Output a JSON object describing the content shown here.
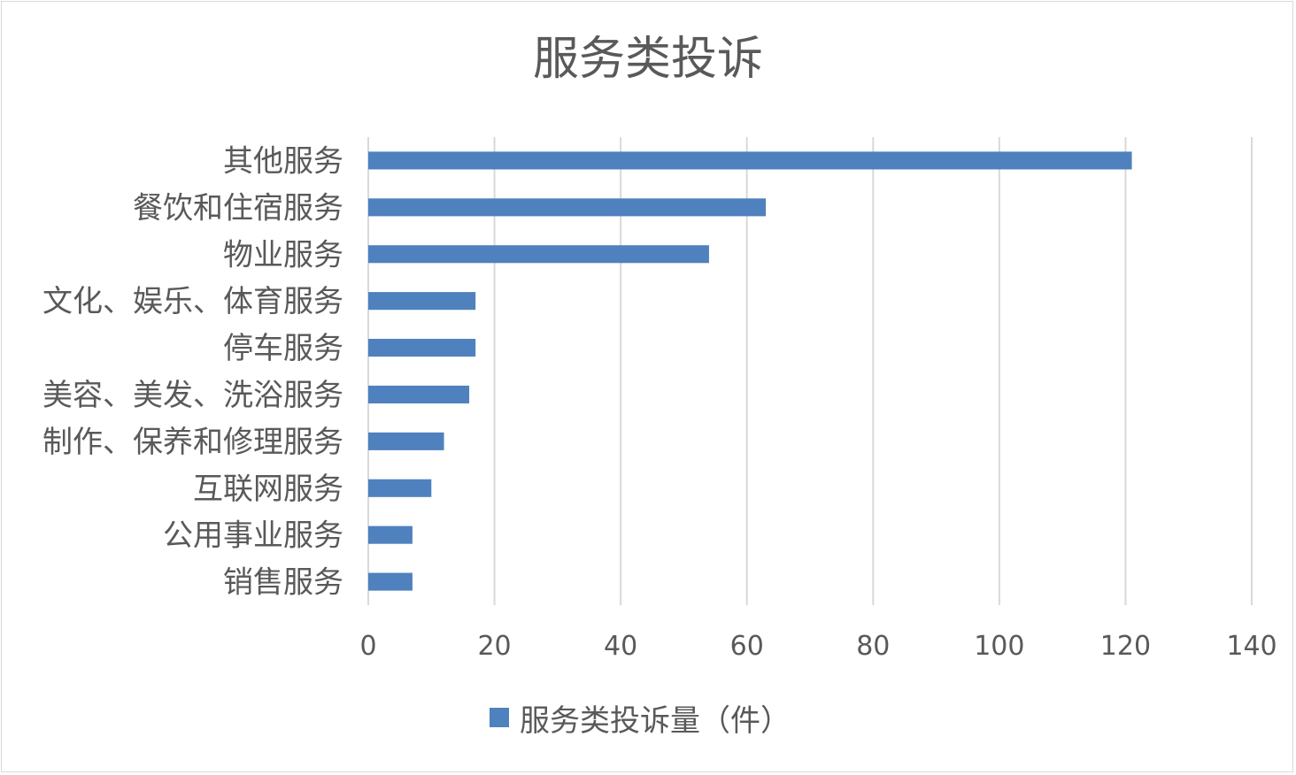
{
  "chart_data": {
    "type": "bar",
    "orientation": "horizontal",
    "title": "服务类投诉",
    "categories": [
      "其他服务",
      "餐饮和住宿服务",
      "物业服务",
      "文化、娱乐、体育服务",
      "停车服务",
      "美容、美发、洗浴服务",
      "制作、保养和修理服务",
      "互联网服务",
      "公用事业服务",
      "销售服务"
    ],
    "series": [
      {
        "name": "服务类投诉量（件）",
        "values": [
          121,
          63,
          54,
          17,
          17,
          16,
          12,
          10,
          7,
          7
        ]
      }
    ],
    "xlim": [
      0,
      140
    ],
    "xticks": [
      0,
      20,
      40,
      60,
      80,
      100,
      120,
      140
    ],
    "grid": "vertical",
    "legend": "bottom",
    "bar_color": "#4e81bd"
  }
}
